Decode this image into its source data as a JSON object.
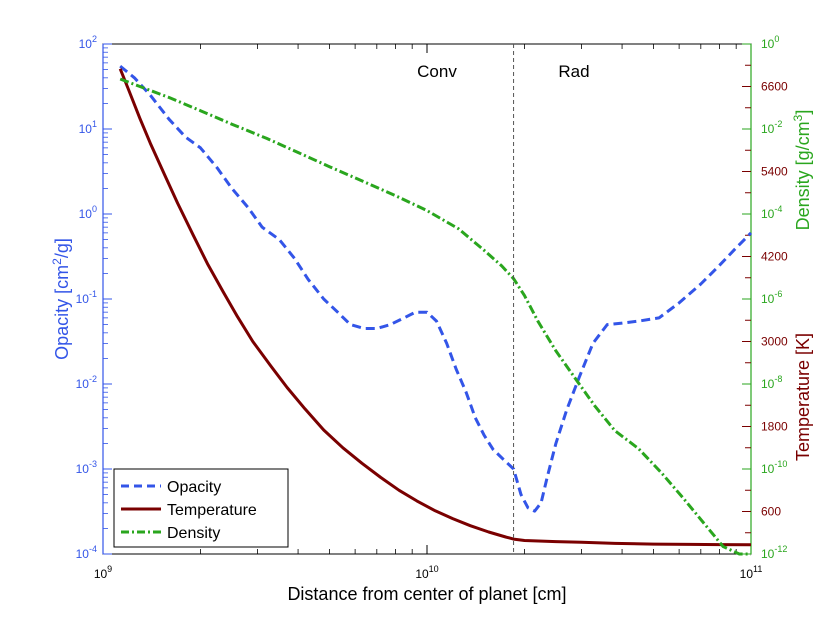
{
  "chart_data": {
    "type": "line",
    "xscale": "log",
    "x_ticks": [
      {
        "value": 1000000000,
        "base": "10",
        "exp": "9"
      },
      {
        "value": 10000000000,
        "base": "10",
        "exp": "10"
      },
      {
        "value": 100000000000,
        "base": "10",
        "exp": "11"
      }
    ],
    "xlim": [
      1000000000,
      100000000000
    ],
    "xlabel": "Distance from center of planet [cm]",
    "axes": {
      "opacity": {
        "label_prefix": "Opacity [cm",
        "label_sup": "2",
        "label_suffix": "/g]",
        "color": "#3355e8",
        "scale": "log",
        "ylim": [
          0.0001,
          100
        ],
        "ticks": [
          {
            "value": 0.0001,
            "base": "10",
            "exp": "-4"
          },
          {
            "value": 0.001,
            "base": "10",
            "exp": "-3"
          },
          {
            "value": 0.01,
            "base": "10",
            "exp": "-2"
          },
          {
            "value": 0.1,
            "base": "10",
            "exp": "-1"
          },
          {
            "value": 1,
            "base": "10",
            "exp": "0"
          },
          {
            "value": 10,
            "base": "10",
            "exp": "1"
          },
          {
            "value": 100,
            "base": "10",
            "exp": "2"
          }
        ]
      },
      "density": {
        "label_prefix": "Density [g/cm",
        "label_sup": "3",
        "label_suffix": "]",
        "color": "#2aa61e",
        "scale": "log",
        "ylim": [
          1e-12,
          1
        ],
        "ticks": [
          {
            "value": 1e-12,
            "base": "10",
            "exp": "-12"
          },
          {
            "value": 1e-10,
            "base": "10",
            "exp": "-10"
          },
          {
            "value": 1e-08,
            "base": "10",
            "exp": "-8"
          },
          {
            "value": 1e-06,
            "base": "10",
            "exp": "-6"
          },
          {
            "value": 0.0001,
            "base": "10",
            "exp": "-4"
          },
          {
            "value": 0.01,
            "base": "10",
            "exp": "-2"
          },
          {
            "value": 1,
            "base": "10",
            "exp": "0"
          }
        ]
      },
      "temperature": {
        "label": "Temperature [K]",
        "color": "#7a0000",
        "scale": "linear",
        "ylim": [
          0,
          7200
        ],
        "ticks": [
          "600",
          "1800",
          "3000",
          "4200",
          "5400",
          "6600"
        ]
      }
    },
    "series": [
      {
        "name": "Opacity",
        "axis": "opacity",
        "style": "dashed",
        "color": "#3355e8",
        "x": [
          1130000000,
          1250000000,
          1400000000,
          1600000000,
          1800000000,
          2000000000,
          2250000000,
          2500000000,
          2800000000,
          3100000000,
          3500000000,
          3900000000,
          4300000000,
          4800000000,
          5300000000,
          5800000000,
          6400000000,
          7000000000,
          7700000000,
          8500000000,
          9200000000,
          10000000000,
          10700000000,
          11500000000,
          12300000000,
          13200000000,
          14100000000,
          15000000000,
          16000000000,
          17200000000,
          18500000000,
          19500000000,
          20500000000,
          21500000000,
          22500000000,
          23500000000,
          25000000000,
          27000000000,
          29500000000,
          32500000000,
          36000000000,
          40000000000,
          45000000000,
          52000000000,
          60000000000,
          70000000000,
          80000000000,
          90000000000,
          100000000000
        ],
        "y": [
          55,
          40,
          25,
          13,
          8,
          6,
          3.5,
          2,
          1.2,
          0.7,
          0.5,
          0.3,
          0.17,
          0.1,
          0.07,
          0.05,
          0.045,
          0.045,
          0.05,
          0.06,
          0.07,
          0.07,
          0.055,
          0.03,
          0.015,
          0.008,
          0.004,
          0.0025,
          0.0017,
          0.0013,
          0.001,
          0.0005,
          0.00035,
          0.00032,
          0.0004,
          0.0008,
          0.002,
          0.005,
          0.012,
          0.03,
          0.05,
          0.052,
          0.055,
          0.06,
          0.09,
          0.15,
          0.25,
          0.4,
          0.6
        ]
      },
      {
        "name": "Temperature",
        "axis": "temperature",
        "style": "solid",
        "color": "#7a0000",
        "x": [
          1130000000,
          1200000000,
          1300000000,
          1400000000,
          1550000000,
          1700000000,
          1900000000,
          2100000000,
          2350000000,
          2600000000,
          2900000000,
          3300000000,
          3700000000,
          4200000000,
          4800000000,
          5500000000,
          6300000000,
          7200000000,
          8200000000,
          9300000000,
          10600000000,
          12000000000,
          13600000000,
          15500000000,
          17500000000,
          18500000000,
          20000000000,
          25000000000,
          30000000000,
          38000000000,
          50000000000,
          65000000000,
          80000000000,
          100000000000
        ],
        "y": [
          6850,
          6550,
          6150,
          5800,
          5350,
          4950,
          4500,
          4100,
          3700,
          3350,
          3000,
          2650,
          2350,
          2050,
          1750,
          1500,
          1280,
          1080,
          900,
          750,
          610,
          500,
          400,
          310,
          240,
          210,
          190,
          175,
          165,
          150,
          140,
          135,
          132,
          130
        ]
      },
      {
        "name": "Density",
        "axis": "density",
        "style": "dash-dot",
        "color": "#2aa61e",
        "x": [
          1130000000,
          1300000000,
          1600000000,
          2000000000,
          2500000000,
          3200000000,
          4000000000,
          5000000000,
          6300000000,
          8000000000,
          10000000000,
          12500000000,
          15000000000,
          17000000000,
          18500000000,
          20000000000,
          22000000000,
          25000000000,
          29000000000,
          33000000000,
          38000000000,
          45000000000,
          53000000000,
          62000000000,
          72000000000,
          82000000000,
          92000000000,
          100000000000
        ],
        "y": [
          0.15,
          0.1,
          0.055,
          0.027,
          0.013,
          0.006,
          0.0028,
          0.0013,
          0.0006,
          0.00027,
          0.00012,
          4.5e-05,
          1.4e-05,
          6e-06,
          3e-06,
          1.2e-06,
          3e-07,
          6e-08,
          1.2e-08,
          3e-09,
          8e-10,
          3e-10,
          8e-11,
          2e-11,
          5e-12,
          1.5e-12,
          5e-13,
          3e-13
        ]
      }
    ],
    "divider": {
      "x": 18500000000,
      "style": "dashed",
      "color": "#555555"
    },
    "region_labels": {
      "left": "Conv",
      "right": "Rad"
    },
    "legend": {
      "position": "bottom-left",
      "entries": [
        "Opacity",
        "Temperature",
        "Density"
      ]
    }
  }
}
